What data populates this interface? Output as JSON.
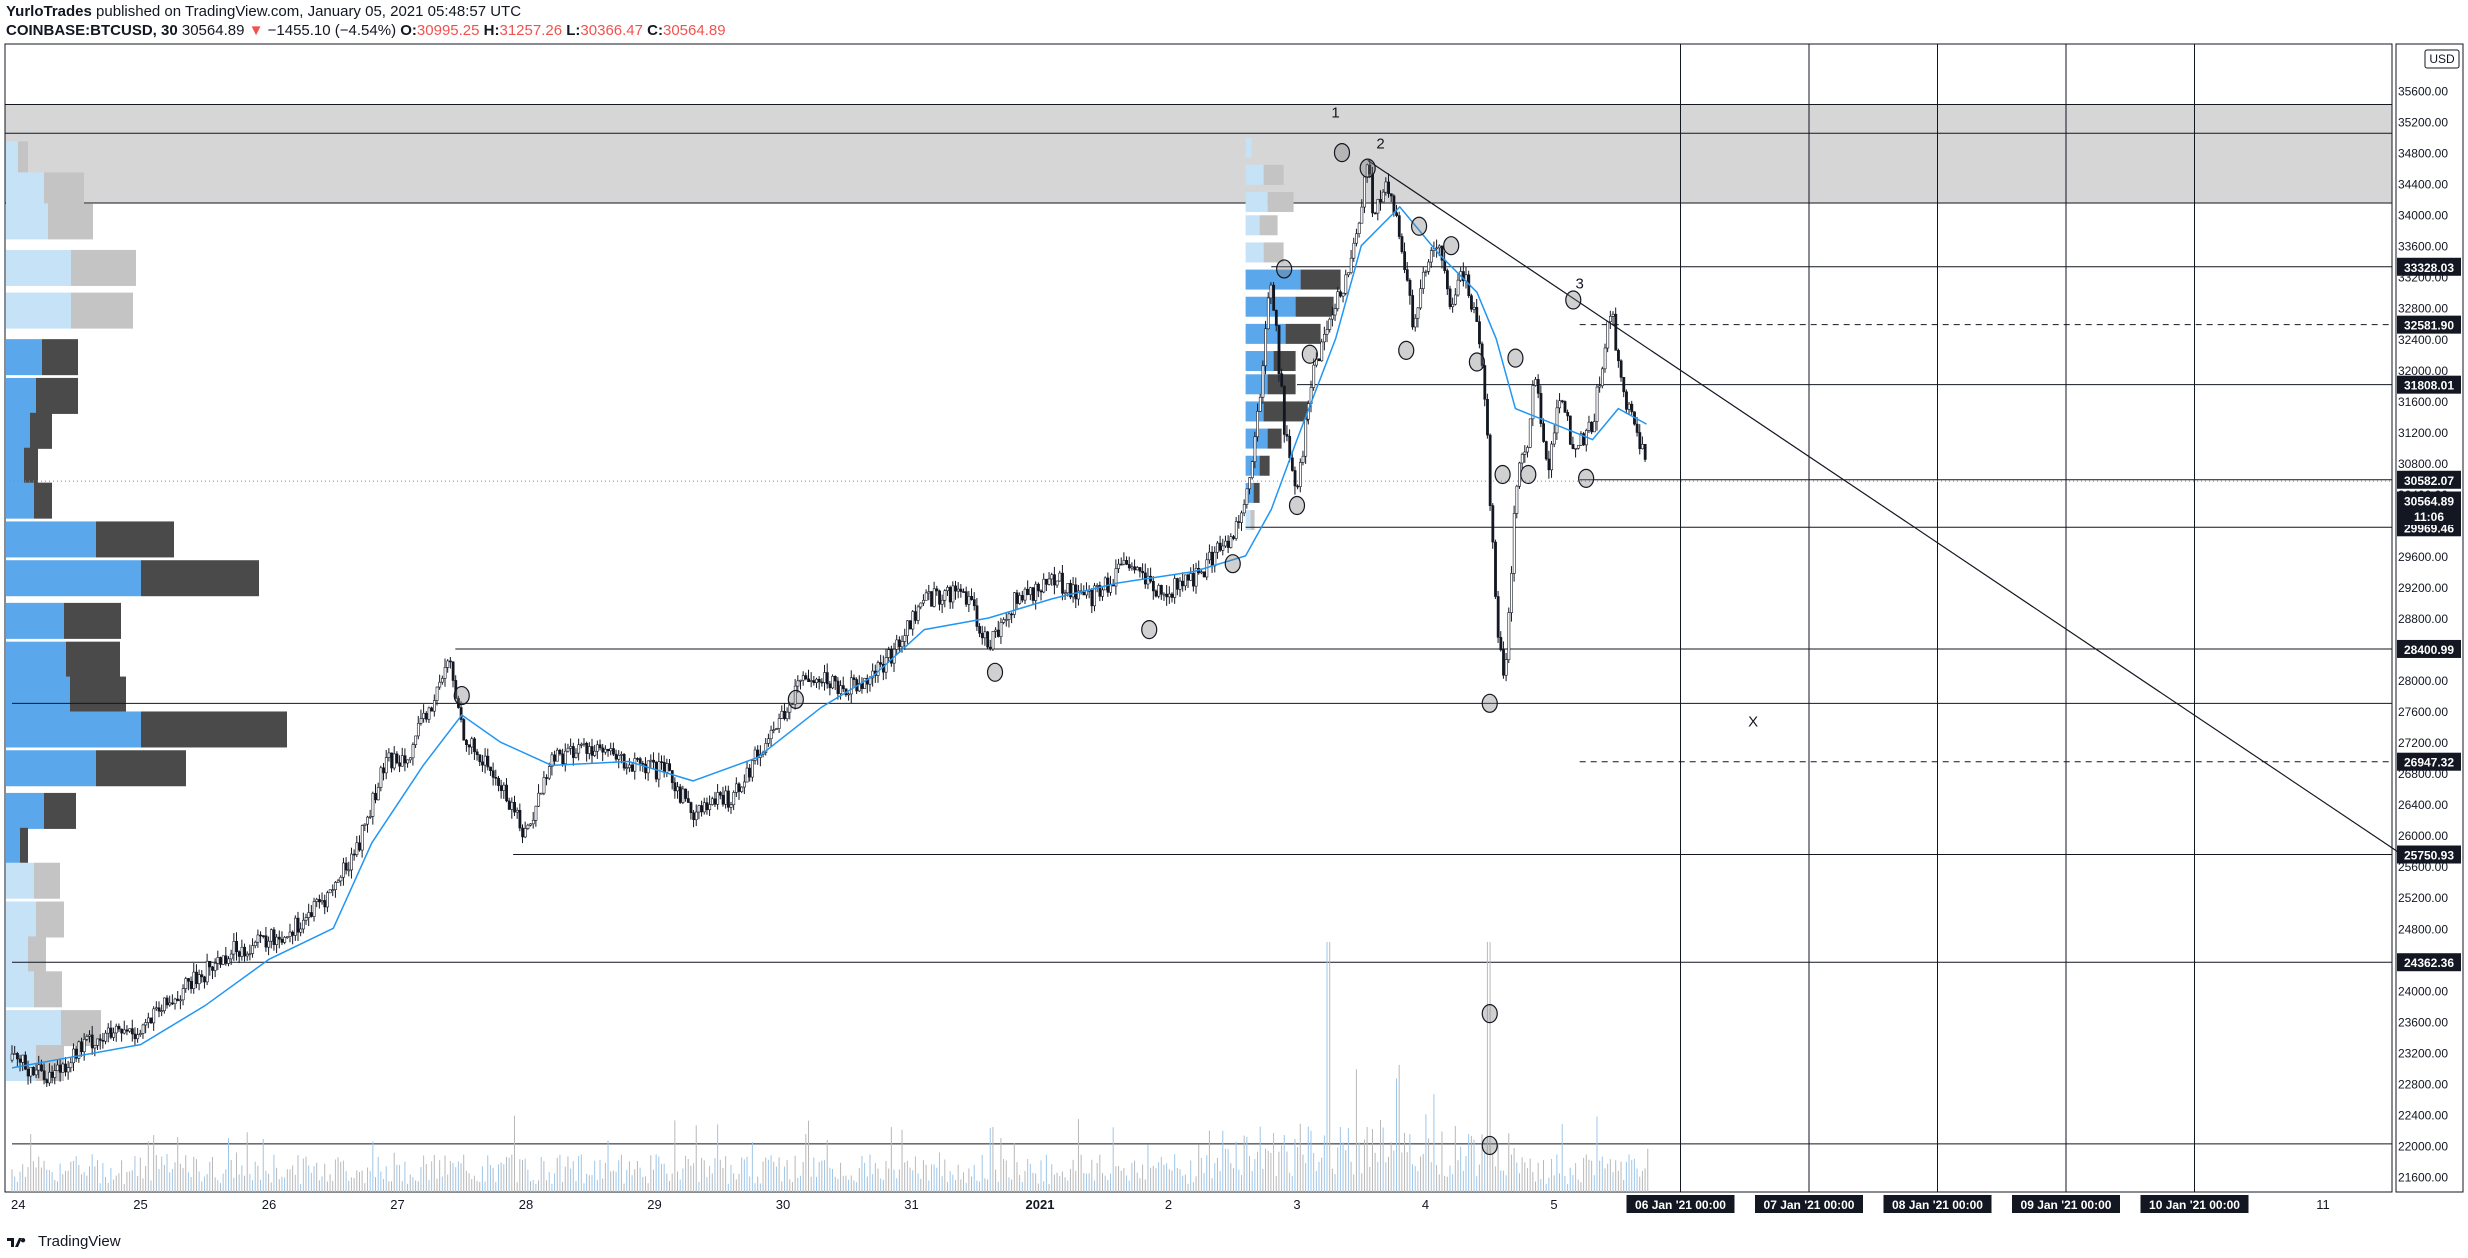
{
  "header": {
    "author": "YurloTrades",
    "published_text": "published on TradingView.com, January 05, 2021 05:48:57 UTC",
    "symbol": "COINBASE:BTCUSD, 30",
    "last": "30564.89",
    "change_arrow": "▼",
    "change": "−1455.10 (−4.54%)",
    "o_label": "O:",
    "o": "30995.25",
    "h_label": "H:",
    "h": "31257.26",
    "l_label": "L:",
    "l": "30366.47",
    "c_label": "C:",
    "c": "30564.89"
  },
  "footer": {
    "brand": "TradingView"
  },
  "colors": {
    "bull": "#131722",
    "bear": "#131722",
    "ma": "#2196f3",
    "vp_light": "#c6e2f7",
    "vp_blue": "#5ba7eb",
    "vp_dark": "#4a4a4a",
    "vp_grey": "#c4c4c4",
    "zone": "#d6d6d6",
    "axis_label_bg": "#131722",
    "axis_label_fg": "#ffffff"
  },
  "chart_data": {
    "type": "candlestick",
    "symbol": "COINBASE:BTCUSD",
    "interval": "30",
    "currency": "USD",
    "ylim": [
      21400,
      36200
    ],
    "y_ticks": [
      21600,
      22000,
      22400,
      22800,
      23200,
      23600,
      24000,
      24400,
      24800,
      25200,
      25600,
      26000,
      26400,
      26800,
      27200,
      27600,
      28000,
      28400,
      28800,
      29200,
      29600,
      30000,
      30400,
      30800,
      31200,
      31600,
      32000,
      32400,
      32800,
      33200,
      33600,
      34000,
      34400,
      34800,
      35200,
      35600
    ],
    "x_ticks": [
      "24",
      "25",
      "26",
      "27",
      "28",
      "29",
      "30",
      "31",
      "2021",
      "2",
      "3",
      "4",
      "5"
    ],
    "x_future_labels": [
      "06 Jan '21  00:00",
      "07 Jan '21  00:00",
      "08 Jan '21  00:00",
      "09 Jan '21  00:00",
      "10 Jan '21  00:00",
      "11"
    ],
    "price_path": [
      [
        0,
        23100
      ],
      [
        0.3,
        22900
      ],
      [
        0.6,
        23350
      ],
      [
        1.0,
        23500
      ],
      [
        1.4,
        24100
      ],
      [
        1.7,
        24500
      ],
      [
        2.1,
        24700
      ],
      [
        2.3,
        24950
      ],
      [
        2.5,
        25300
      ],
      [
        2.7,
        25900
      ],
      [
        2.9,
        26900
      ],
      [
        3.1,
        27100
      ],
      [
        3.3,
        27800
      ],
      [
        3.4,
        28250
      ],
      [
        3.5,
        27400
      ],
      [
        3.6,
        27050
      ],
      [
        3.7,
        26900
      ],
      [
        3.9,
        26350
      ],
      [
        4.0,
        26000
      ],
      [
        4.2,
        27000
      ],
      [
        4.5,
        27150
      ],
      [
        4.8,
        26900
      ],
      [
        5.1,
        26800
      ],
      [
        5.3,
        26300
      ],
      [
        5.6,
        26500
      ],
      [
        5.9,
        27300
      ],
      [
        6.2,
        28100
      ],
      [
        6.5,
        27900
      ],
      [
        6.8,
        28200
      ],
      [
        7.1,
        29050
      ],
      [
        7.4,
        29150
      ],
      [
        7.6,
        28450
      ],
      [
        7.8,
        29000
      ],
      [
        8.1,
        29300
      ],
      [
        8.4,
        29050
      ],
      [
        8.7,
        29500
      ],
      [
        8.9,
        29100
      ],
      [
        9.2,
        29300
      ],
      [
        9.4,
        29700
      ],
      [
        9.5,
        29850
      ],
      [
        9.65,
        30700
      ],
      [
        9.8,
        33200
      ],
      [
        9.9,
        31300
      ],
      [
        10.0,
        30300
      ],
      [
        10.1,
        31800
      ],
      [
        10.2,
        32300
      ],
      [
        10.35,
        33050
      ],
      [
        10.45,
        33550
      ],
      [
        10.55,
        34650
      ],
      [
        10.6,
        33950
      ],
      [
        10.7,
        34400
      ],
      [
        10.8,
        33700
      ],
      [
        10.9,
        32600
      ],
      [
        11.0,
        33300
      ],
      [
        11.1,
        33600
      ],
      [
        11.2,
        32800
      ],
      [
        11.3,
        33300
      ],
      [
        11.45,
        32100
      ],
      [
        11.55,
        28800
      ],
      [
        11.62,
        27900
      ],
      [
        11.7,
        30500
      ],
      [
        11.8,
        31100
      ],
      [
        11.85,
        32000
      ],
      [
        11.95,
        30700
      ],
      [
        12.05,
        31700
      ],
      [
        12.15,
        31000
      ],
      [
        12.3,
        31300
      ],
      [
        12.4,
        32400
      ],
      [
        12.45,
        32700
      ],
      [
        12.55,
        31600
      ],
      [
        12.7,
        30900
      ],
      [
        12.72,
        30565
      ]
    ],
    "ema_path": [
      [
        0,
        23000
      ],
      [
        1.0,
        23300
      ],
      [
        1.5,
        23800
      ],
      [
        2.0,
        24400
      ],
      [
        2.5,
        24800
      ],
      [
        2.8,
        25900
      ],
      [
        3.2,
        26900
      ],
      [
        3.5,
        27550
      ],
      [
        3.8,
        27200
      ],
      [
        4.2,
        26900
      ],
      [
        4.8,
        26950
      ],
      [
        5.3,
        26700
      ],
      [
        5.8,
        27000
      ],
      [
        6.3,
        27650
      ],
      [
        6.7,
        28050
      ],
      [
        7.1,
        28650
      ],
      [
        7.6,
        28800
      ],
      [
        8.1,
        29050
      ],
      [
        8.6,
        29250
      ],
      [
        9.2,
        29400
      ],
      [
        9.6,
        29600
      ],
      [
        9.8,
        30200
      ],
      [
        10.0,
        31100
      ],
      [
        10.3,
        32400
      ],
      [
        10.5,
        33600
      ],
      [
        10.8,
        34100
      ],
      [
        11.1,
        33500
      ],
      [
        11.4,
        33000
      ],
      [
        11.55,
        32400
      ],
      [
        11.7,
        31500
      ],
      [
        12.0,
        31300
      ],
      [
        12.3,
        31100
      ],
      [
        12.5,
        31500
      ],
      [
        12.72,
        31300
      ]
    ],
    "horizontal_levels": [
      {
        "price": 33328.03,
        "label": "33328.03",
        "from": 9.8,
        "style": "solid"
      },
      {
        "price": 32581.9,
        "label": "32581.90",
        "from": 12.2,
        "style": "dashed"
      },
      {
        "price": 31808.01,
        "label": "31808.01",
        "from": 10.0,
        "style": "solid"
      },
      {
        "price": 30582.07,
        "label": "30582.07",
        "from": 12.2,
        "style": "solid"
      },
      {
        "price": 29969.46,
        "label": "29969.46",
        "from": 9.6,
        "style": "solid"
      },
      {
        "price": 28400.99,
        "label": "28400.99",
        "from": 3.45,
        "style": "solid"
      },
      {
        "price": 27700,
        "label": "",
        "from": 0,
        "style": "solid"
      },
      {
        "price": 26947.32,
        "label": "26947.32",
        "from": 12.2,
        "style": "dashed"
      },
      {
        "price": 25750.93,
        "label": "25750.93",
        "from": 3.9,
        "style": "solid"
      },
      {
        "price": 24362.36,
        "label": "24362.36",
        "from": 0,
        "style": "solid"
      },
      {
        "price": 22020,
        "label": "",
        "from": 0,
        "style": "solid"
      }
    ],
    "last_price_label": "30564.89",
    "countdown_label": "11:06",
    "resistance_zone": [
      34150,
      35420
    ],
    "upper_zone_line": 35050,
    "trendline": [
      [
        10.55,
        34700
      ],
      [
        18.6,
        25750
      ]
    ],
    "wave_labels": [
      {
        "text": "1",
        "x": 10.3,
        "price": 35250
      },
      {
        "text": "2",
        "x": 10.65,
        "price": 34850
      },
      {
        "text": "3",
        "x": 12.2,
        "price": 33050
      },
      {
        "text": "X",
        "x": 13.55,
        "price": 27400
      }
    ],
    "circles": [
      [
        10.35,
        34800
      ],
      [
        10.55,
        34600
      ],
      [
        10.95,
        33850
      ],
      [
        11.2,
        33600
      ],
      [
        10.85,
        32250
      ],
      [
        9.9,
        33300
      ],
      [
        10.1,
        32200
      ],
      [
        12.15,
        32900
      ],
      [
        11.4,
        32100
      ],
      [
        11.7,
        32150
      ],
      [
        11.6,
        30650
      ],
      [
        11.8,
        30650
      ],
      [
        12.25,
        30600
      ],
      [
        10.0,
        30250
      ],
      [
        9.5,
        29500
      ],
      [
        8.85,
        28650
      ],
      [
        7.65,
        28100
      ],
      [
        6.1,
        27750
      ],
      [
        3.5,
        27800
      ],
      [
        11.5,
        27700
      ],
      [
        11.5,
        23700
      ],
      [
        11.5,
        22000
      ]
    ],
    "volume_profile_left": [
      {
        "price": 34700,
        "vol_light": 12,
        "vol_dark": 10
      },
      {
        "price": 34300,
        "vol_light": 38,
        "vol_dark": 40
      },
      {
        "price": 33900,
        "vol_light": 42,
        "vol_dark": 45
      },
      {
        "price": 33300,
        "vol_light": 65,
        "vol_dark": 65
      },
      {
        "price": 32750,
        "vol_light": 65,
        "vol_dark": 62
      },
      {
        "price": 32150,
        "vol_light": 36,
        "vol_dark": 36
      },
      {
        "price": 31650,
        "vol_light": 30,
        "vol_dark": 42
      },
      {
        "price": 31200,
        "vol_light": 24,
        "vol_dark": 22
      },
      {
        "price": 30750,
        "vol_light": 18,
        "vol_dark": 14
      },
      {
        "price": 30300,
        "vol_light": 28,
        "vol_dark": 18
      },
      {
        "price": 29800,
        "vol_light": 90,
        "vol_dark": 78
      },
      {
        "price": 29300,
        "vol_light": 135,
        "vol_dark": 118
      },
      {
        "price": 28750,
        "vol_light": 58,
        "vol_dark": 57
      },
      {
        "price": 28250,
        "vol_light": 60,
        "vol_dark": 54
      },
      {
        "price": 27800,
        "vol_light": 64,
        "vol_dark": 56
      },
      {
        "price": 27350,
        "vol_light": 135,
        "vol_dark": 146
      },
      {
        "price": 26850,
        "vol_light": 90,
        "vol_dark": 90
      },
      {
        "price": 26300,
        "vol_light": 38,
        "vol_dark": 32
      },
      {
        "price": 25850,
        "vol_light": 14,
        "vol_dark": 8
      },
      {
        "price": 25400,
        "vol_light": 28,
        "vol_dark": 26
      },
      {
        "price": 24900,
        "vol_light": 30,
        "vol_dark": 28
      },
      {
        "price": 24450,
        "vol_light": 22,
        "vol_dark": 18
      },
      {
        "price": 24000,
        "vol_light": 28,
        "vol_dark": 28
      },
      {
        "price": 23500,
        "vol_light": 55,
        "vol_dark": 40
      },
      {
        "price": 23050,
        "vol_light": 30,
        "vol_dark": 28
      }
    ],
    "volume_profile_mid": [
      {
        "price": 34850,
        "light": 6,
        "dark": 0
      },
      {
        "price": 34500,
        "light": 18,
        "dark": 20
      },
      {
        "price": 34150,
        "light": 22,
        "dark": 26
      },
      {
        "price": 33850,
        "light": 14,
        "dark": 18
      },
      {
        "price": 33500,
        "light": 18,
        "dark": 20
      },
      {
        "price": 33150,
        "light": 55,
        "dark": 40
      },
      {
        "price": 32800,
        "light": 50,
        "dark": 38
      },
      {
        "price": 32450,
        "light": 40,
        "dark": 35
      },
      {
        "price": 32100,
        "light": 28,
        "dark": 22
      },
      {
        "price": 31800,
        "light": 22,
        "dark": 28
      },
      {
        "price": 31450,
        "light": 18,
        "dark": 45
      },
      {
        "price": 31100,
        "light": 22,
        "dark": 14
      },
      {
        "price": 30750,
        "light": 14,
        "dark": 10
      },
      {
        "price": 30400,
        "light": 8,
        "dark": 6
      },
      {
        "price": 30050,
        "light": 5,
        "dark": 4
      }
    ]
  }
}
